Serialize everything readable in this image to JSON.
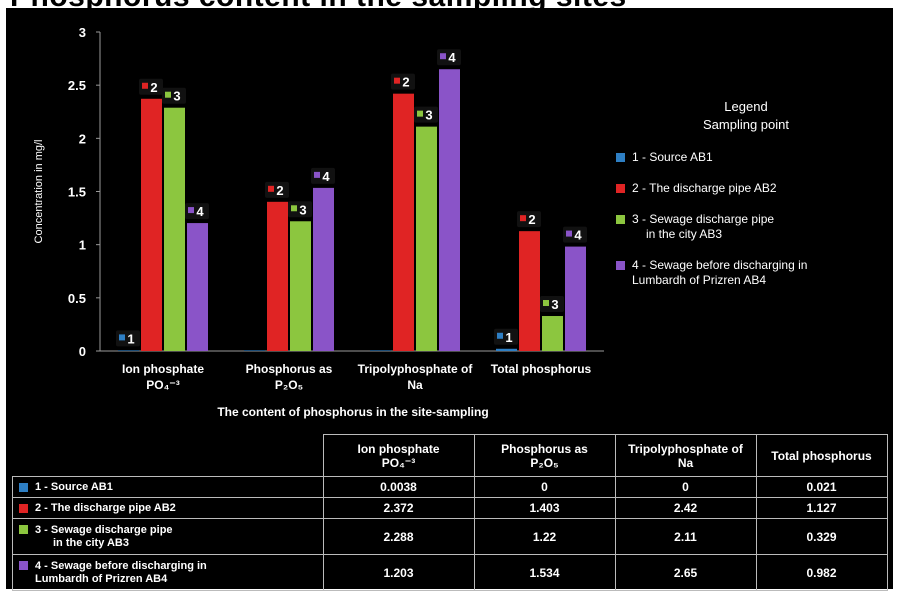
{
  "chart_data": {
    "type": "bar",
    "ylabel": "Concentration in mg/l",
    "xlabel": "The content of phosphorus in the site-sampling",
    "ylim": [
      0,
      3
    ],
    "yticks": [
      "0",
      "0.5",
      "1",
      "1.5",
      "2",
      "2.5",
      "3"
    ],
    "categories": [
      {
        "line1": "Ion phosphate",
        "line2": "PO₄⁻³"
      },
      {
        "line1": "Phosphorus as",
        "line2": "P₂O₅"
      },
      {
        "line1": "Tripolyphosphate of",
        "line2": "Na"
      },
      {
        "line1": "Total phosphorus",
        "line2": ""
      }
    ],
    "series": [
      {
        "name": "1 - Source AB1",
        "marker": "1",
        "color": "#2e7fc4",
        "values": [
          0.0038,
          0,
          0,
          0.021
        ]
      },
      {
        "name": "2 - The discharge pipe AB2",
        "marker": "2",
        "color": "#e02424",
        "values": [
          2.372,
          1.403,
          2.42,
          1.127
        ]
      },
      {
        "name": "3 - Sewage discharge pipe in the city AB3",
        "marker": "3",
        "color": "#8cc63f",
        "values": [
          2.288,
          1.22,
          2.11,
          0.329
        ]
      },
      {
        "name": "4 - Sewage before discharging in Lumbardh of Prizren AB4",
        "marker": "4",
        "color": "#8a54c8",
        "values": [
          1.203,
          1.534,
          2.65,
          0.982
        ]
      }
    ],
    "grid": false
  },
  "heading": "Phosphorus content in the sampling sites",
  "legend": {
    "title_line1": "Legend",
    "title_line2": "Sampling point",
    "items": [
      {
        "text": "1 - Source AB1",
        "color": "#2e7fc4"
      },
      {
        "text": "2 - The discharge pipe AB2",
        "color": "#e02424"
      },
      {
        "text": "3 - Sewage discharge pipe",
        "text2": "in the city AB3",
        "color": "#8cc63f"
      },
      {
        "text": "4 - Sewage before discharging in",
        "text2": "Lumbardh of Prizren AB4",
        "color": "#8a54c8"
      }
    ]
  },
  "table": {
    "headers": [
      {
        "line1": "Ion phosphate",
        "line2": "PO₄⁻³"
      },
      {
        "line1": "Phosphorus as",
        "line2": "P₂O₅"
      },
      {
        "line1": "Tripolyphosphate of",
        "line2": "Na"
      },
      {
        "line1": "Total phosphorus",
        "line2": ""
      }
    ],
    "rows": [
      {
        "label": "1 - Source AB1",
        "label2": "",
        "color": "#2e7fc4",
        "cells": [
          "0.0038",
          "0",
          "0",
          "0.021"
        ]
      },
      {
        "label": "2 - The discharge pipe AB2",
        "label2": "",
        "color": "#e02424",
        "cells": [
          "2.372",
          "1.403",
          "2.42",
          "1.127"
        ]
      },
      {
        "label": "3 - Sewage discharge pipe",
        "label2": "in the city AB3",
        "color": "#8cc63f",
        "cells": [
          "2.288",
          "1.22",
          "2.11",
          "0.329"
        ]
      },
      {
        "label": "4 - Sewage before discharging in",
        "label2": "Lumbardh of Prizren AB4",
        "color": "#8a54c8",
        "cells": [
          "1.203",
          "1.534",
          "2.65",
          "0.982"
        ]
      }
    ]
  }
}
